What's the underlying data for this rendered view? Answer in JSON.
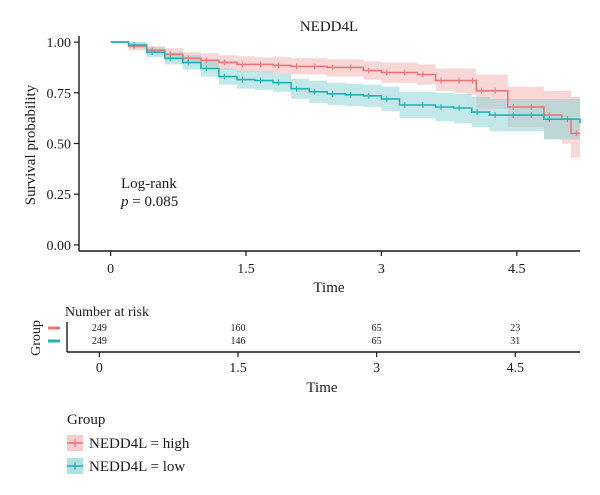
{
  "chart_data": {
    "type": "line",
    "title": "NEDD4L",
    "xlabel": "Time",
    "ylabel": "Survival probability",
    "xlim": [
      -0.35,
      5.2
    ],
    "ylim": [
      -0.03,
      1.03
    ],
    "xticks": [
      0,
      1.5,
      3,
      4.5
    ],
    "xtick_labels": [
      "0",
      "1.5",
      "3",
      "4.5"
    ],
    "yticks": [
      0,
      0.25,
      0.5,
      0.75,
      1.0
    ],
    "ytick_labels": [
      "0.00",
      "0.25",
      "0.50",
      "0.75",
      "1.00"
    ],
    "annotation_line1": "Log-rank",
    "annotation_p_symbol": "p",
    "annotation_p_value": " = 0.085",
    "series": [
      {
        "name": "NEDD4L = high",
        "color": "#e8777a",
        "band_color": "#f4b6b6",
        "x": [
          0,
          0.2,
          0.4,
          0.6,
          0.8,
          1.0,
          1.2,
          1.4,
          1.6,
          1.8,
          2.0,
          2.2,
          2.4,
          2.6,
          2.8,
          3.0,
          3.2,
          3.4,
          3.6,
          3.8,
          3.95,
          4.05,
          4.2,
          4.4,
          4.6,
          4.8,
          5.0,
          5.1,
          5.2
        ],
        "y": [
          1.0,
          0.98,
          0.96,
          0.94,
          0.92,
          0.91,
          0.9,
          0.89,
          0.89,
          0.885,
          0.88,
          0.88,
          0.875,
          0.875,
          0.86,
          0.85,
          0.85,
          0.84,
          0.81,
          0.81,
          0.81,
          0.76,
          0.76,
          0.68,
          0.68,
          0.64,
          0.62,
          0.55,
          0.55
        ],
        "upper": [
          1.0,
          1.0,
          0.98,
          0.97,
          0.95,
          0.945,
          0.935,
          0.93,
          0.925,
          0.925,
          0.92,
          0.92,
          0.915,
          0.915,
          0.905,
          0.9,
          0.9,
          0.89,
          0.87,
          0.87,
          0.87,
          0.84,
          0.84,
          0.78,
          0.78,
          0.76,
          0.76,
          0.73,
          0.73
        ],
        "lower": [
          1.0,
          0.96,
          0.935,
          0.91,
          0.89,
          0.875,
          0.865,
          0.855,
          0.85,
          0.845,
          0.84,
          0.84,
          0.83,
          0.83,
          0.815,
          0.8,
          0.8,
          0.79,
          0.76,
          0.75,
          0.74,
          0.67,
          0.67,
          0.58,
          0.58,
          0.52,
          0.5,
          0.43,
          0.43
        ]
      },
      {
        "name": "NEDD4L = low",
        "color": "#22b2b4",
        "band_color": "#8fd6d7",
        "x": [
          0,
          0.2,
          0.4,
          0.6,
          0.8,
          1.0,
          1.2,
          1.4,
          1.6,
          1.8,
          2.0,
          2.2,
          2.4,
          2.6,
          2.8,
          3.0,
          3.2,
          3.4,
          3.6,
          3.8,
          4.0,
          4.2,
          4.4,
          4.6,
          4.8,
          5.0,
          5.2
        ],
        "y": [
          1.0,
          0.985,
          0.95,
          0.92,
          0.9,
          0.87,
          0.83,
          0.815,
          0.81,
          0.8,
          0.77,
          0.755,
          0.745,
          0.74,
          0.735,
          0.72,
          0.69,
          0.69,
          0.68,
          0.675,
          0.655,
          0.64,
          0.64,
          0.64,
          0.62,
          0.62,
          0.6
        ],
        "upper": [
          1.0,
          1.0,
          0.975,
          0.95,
          0.935,
          0.905,
          0.87,
          0.86,
          0.855,
          0.845,
          0.82,
          0.81,
          0.8,
          0.795,
          0.79,
          0.78,
          0.755,
          0.755,
          0.75,
          0.745,
          0.73,
          0.72,
          0.72,
          0.72,
          0.72,
          0.72,
          0.72
        ],
        "lower": [
          1.0,
          0.97,
          0.925,
          0.89,
          0.865,
          0.83,
          0.79,
          0.77,
          0.765,
          0.755,
          0.72,
          0.7,
          0.69,
          0.685,
          0.68,
          0.66,
          0.625,
          0.625,
          0.61,
          0.6,
          0.58,
          0.56,
          0.56,
          0.56,
          0.52,
          0.52,
          0.47
        ]
      }
    ]
  },
  "risk_table": {
    "title": "Number at risk",
    "ylabel": "Group",
    "xlabel": "Time",
    "xtick_labels": [
      "0",
      "1.5",
      "3",
      "4.5"
    ],
    "rows": [
      {
        "color": "#e8777a",
        "values": [
          "249",
          "160",
          "65",
          "23"
        ]
      },
      {
        "color": "#22b2b4",
        "values": [
          "249",
          "146",
          "65",
          "31"
        ]
      }
    ]
  },
  "legend": {
    "title": "Group",
    "items": [
      {
        "label": "NEDD4L = high",
        "color": "#e8777a",
        "band_color": "#f4b6b6"
      },
      {
        "label": "NEDD4L = low",
        "color": "#22b2b4",
        "band_color": "#8fd6d7"
      }
    ]
  }
}
